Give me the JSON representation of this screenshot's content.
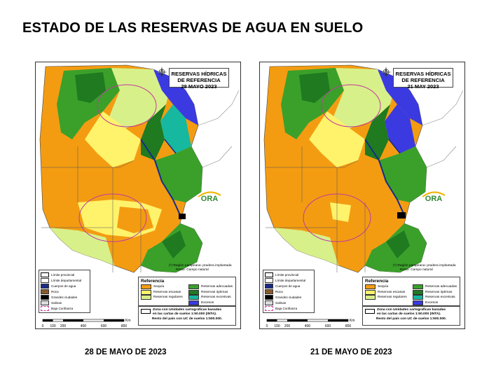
{
  "page_title": "ESTADO DE LAS RESERVAS DE AGUA EN SUELO",
  "maps": [
    {
      "title_line1": "RESERVAS HÍDRICAS",
      "title_line2": "DE REFERENCIA",
      "title_line3": "28 MAYO 2023",
      "caption": "28 DE MAYO DE 2023"
    },
    {
      "title_line1": "RESERVAS HÍDRICAS",
      "title_line2": "DE REFERENCIA",
      "title_line3": "21 MAY 2023",
      "caption": "21 DE MAYO DE 2023"
    }
  ],
  "logo_text": "ORA",
  "note_line1": "(*) Región pampeana: pradera implantada",
  "note_line2": "Resto: Campo natural",
  "legend_boundaries": [
    {
      "label": "Límite provincial",
      "color": "#ffffff"
    },
    {
      "label": "Límite departamental",
      "color": "#ffffff"
    },
    {
      "label": "Cuerpos de agua",
      "color": "#1a2a8a"
    },
    {
      "label": "Roca",
      "color": "#8b5a2b"
    },
    {
      "label": "Grandes ciudades",
      "color": "#000000"
    },
    {
      "label": "Salinas",
      "color": "#dcdcdc"
    },
    {
      "label": "Baja Confianza",
      "color": "#ffffff"
    }
  ],
  "legend_title": "Referencia",
  "legend_classes": [
    {
      "label": "Sequía",
      "color": "#f39c12"
    },
    {
      "label": "Reservas adecuadas",
      "color": "#3aa02a"
    },
    {
      "label": "Reservas escasas",
      "color": "#fff36b"
    },
    {
      "label": "Reservas óptimas",
      "color": "#1f7a20"
    },
    {
      "label": "Reservas regulares",
      "color": "#d8f08a"
    },
    {
      "label": "Reservas excesivas",
      "color": "#16b8a0"
    },
    {
      "label": "",
      "color": ""
    },
    {
      "label": "Excesos",
      "color": "#3a3ae0"
    }
  ],
  "zona_line1": "Zona con Unidades cartográficas basadas",
  "zona_line2": "en las cartas de suelos 1:50.000 (INTA).",
  "zona_line3": "Resto del país con UC de suelos 1:500.000.",
  "scale": {
    "unit": "Km",
    "ticks": [
      "0",
      "100",
      "200",
      "400",
      "600",
      "800"
    ]
  }
}
